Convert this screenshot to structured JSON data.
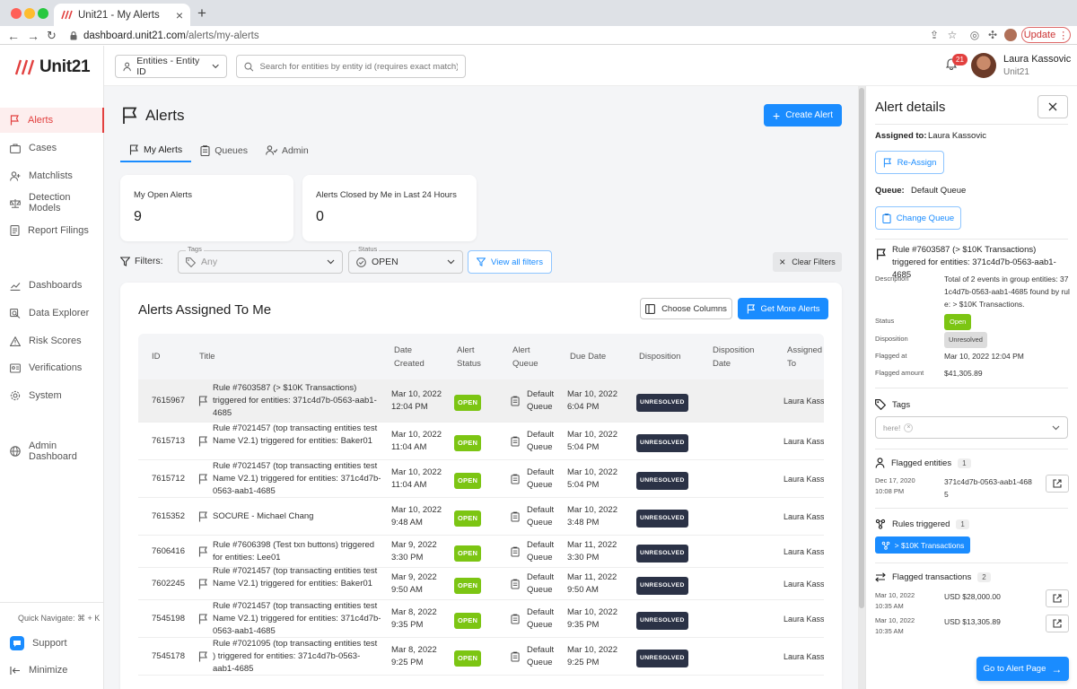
{
  "browser": {
    "tab_title": "Unit21 - My Alerts",
    "url_host": "dashboard.unit21.com",
    "url_path": "/alerts/my-alerts",
    "update_label": "Update"
  },
  "sidebar": {
    "logo_text": "Unit21",
    "items": [
      {
        "label": "Alerts",
        "icon": "flag-icon"
      },
      {
        "label": "Cases",
        "icon": "briefcase-icon"
      },
      {
        "label": "Matchlists",
        "icon": "user-plus-icon"
      },
      {
        "label": "Detection Models",
        "icon": "scale-icon"
      },
      {
        "label": "Report Filings",
        "icon": "document-icon"
      },
      {
        "label": "Dashboards",
        "icon": "chart-icon"
      },
      {
        "label": "Data Explorer",
        "icon": "search-icon"
      },
      {
        "label": "Risk Scores",
        "icon": "warning-icon"
      },
      {
        "label": "Verifications",
        "icon": "id-card-icon"
      },
      {
        "label": "System",
        "icon": "gear-icon"
      },
      {
        "label": "Admin Dashboard",
        "icon": "globe-icon"
      }
    ],
    "quick_navigate": "Quick Navigate: ⌘ + K",
    "support": "Support",
    "minimize": "Minimize"
  },
  "topbar": {
    "entity_select": "Entities - Entity ID",
    "search_placeholder": "Search for entities by entity id (requires exact match)",
    "notification_count": "21",
    "user_name": "Laura Kassovic",
    "user_org": "Unit21"
  },
  "page": {
    "title": "Alerts",
    "create_button": "Create Alert",
    "tabs": [
      "My Alerts",
      "Queues",
      "Admin"
    ],
    "cards": [
      {
        "label": "My Open Alerts",
        "value": "9"
      },
      {
        "label": "Alerts Closed by Me in Last 24 Hours",
        "value": "0"
      }
    ],
    "filters": {
      "label": "Filters:",
      "tags_label": "Tags",
      "tags_placeholder": "Any",
      "status_label": "Status",
      "status_value": "OPEN",
      "view_all": "View all filters",
      "clear": "Clear Filters"
    }
  },
  "table": {
    "title": "Alerts Assigned To Me",
    "choose_columns": "Choose Columns",
    "get_more": "Get More Alerts",
    "columns": [
      "ID",
      "Title",
      "Date Created",
      "Alert Status",
      "Alert Queue",
      "Due Date",
      "Disposition",
      "Disposition Date",
      "Assigned To"
    ],
    "rows": [
      {
        "id": "7615967",
        "title": "Rule #7603587 (> $10K Transactions) triggered for entities: 371c4d7b-0563-aab1-4685",
        "date": "Mar 10, 2022",
        "time": "12:04 PM",
        "status": "OPEN",
        "queue": "Default Queue",
        "due_date": "Mar 10, 2022",
        "due_time": "6:04 PM",
        "disposition": "UNRESOLVED",
        "assigned": "Laura Kassovic"
      },
      {
        "id": "7615713",
        "title": "Rule #7021457 (top transacting entities test Name V2.1) triggered for entities: Baker01",
        "date": "Mar 10, 2022",
        "time": "11:04 AM",
        "status": "OPEN",
        "queue": "Default Queue",
        "due_date": "Mar 10, 2022",
        "due_time": "5:04 PM",
        "disposition": "UNRESOLVED",
        "assigned": "Laura Kassovic"
      },
      {
        "id": "7615712",
        "title": "Rule #7021457 (top transacting entities test Name V2.1) triggered for entities: 371c4d7b-0563-aab1-4685",
        "date": "Mar 10, 2022",
        "time": "11:04 AM",
        "status": "OPEN",
        "queue": "Default Queue",
        "due_date": "Mar 10, 2022",
        "due_time": "5:04 PM",
        "disposition": "UNRESOLVED",
        "assigned": "Laura Kassovic"
      },
      {
        "id": "7615352",
        "title": "SOCURE - Michael Chang",
        "date": "Mar 10, 2022",
        "time": "9:48 AM",
        "status": "OPEN",
        "queue": "Default Queue",
        "due_date": "Mar 10, 2022",
        "due_time": "3:48 PM",
        "disposition": "UNRESOLVED",
        "assigned": "Laura Kassovic"
      },
      {
        "id": "7606416",
        "title": "Rule #7606398 (Test txn buttons) triggered for entities: Lee01",
        "date": "Mar 9, 2022",
        "time": "3:30 PM",
        "status": "OPEN",
        "queue": "Default Queue",
        "due_date": "Mar 11, 2022",
        "due_time": "3:30 PM",
        "disposition": "UNRESOLVED",
        "assigned": "Laura Kassovic"
      },
      {
        "id": "7602245",
        "title": "Rule #7021457 (top transacting entities test Name V2.1) triggered for entities: Baker01",
        "date": "Mar 9, 2022",
        "time": "9:50 AM",
        "status": "OPEN",
        "queue": "Default Queue",
        "due_date": "Mar 11, 2022",
        "due_time": "9:50 AM",
        "disposition": "UNRESOLVED",
        "assigned": "Laura Kassovic"
      },
      {
        "id": "7545198",
        "title": "Rule #7021457 (top transacting entities test Name V2.1) triggered for entities: 371c4d7b-0563-aab1-4685",
        "date": "Mar 8, 2022",
        "time": "9:35 PM",
        "status": "OPEN",
        "queue": "Default Queue",
        "due_date": "Mar 10, 2022",
        "due_time": "9:35 PM",
        "disposition": "UNRESOLVED",
        "assigned": "Laura Kassovic"
      },
      {
        "id": "7545178",
        "title": "Rule #7021095 (top transacting entities test ) triggered for entities: 371c4d7b-0563-aab1-4685",
        "date": "Mar 8, 2022",
        "time": "9:25 PM",
        "status": "OPEN",
        "queue": "Default Queue",
        "due_date": "Mar 10, 2022",
        "due_time": "9:25 PM",
        "disposition": "UNRESOLVED",
        "assigned": "Laura Kassovic"
      }
    ]
  },
  "details": {
    "title": "Alert details",
    "assigned_label": "Assigned to:",
    "assigned_value": "Laura Kassovic",
    "reassign": "Re-Assign",
    "queue_label": "Queue:",
    "queue_value": "Default Queue",
    "change_queue": "Change Queue",
    "rule_title": "Rule #7603587 (> $10K Transactions) triggered for entities: 371c4d7b-0563-aab1-4685",
    "description_label": "Description",
    "description": "Total of 2 events in group entities: 371c4d7b-0563-aab1-4685 found by rule: > $10K Transactions.",
    "status_label": "Status",
    "status": "Open",
    "disposition_label": "Disposition",
    "disposition": "Unresolved",
    "flagged_at_label": "Flagged at",
    "flagged_at": "Mar 10, 2022 12:04 PM",
    "flagged_amount_label": "Flagged amount",
    "flagged_amount": "$41,305.89",
    "tags_label": "Tags",
    "tag_chip": "here!",
    "flagged_entities_label": "Flagged entities",
    "flagged_entities_count": "1",
    "entity_date": "Dec 17, 2020",
    "entity_time": "10:08 PM",
    "entity_id": "371c4d7b-0563-aab1-4685",
    "rules_label": "Rules triggered",
    "rules_count": "1",
    "rule_chip": "> $10K Transactions",
    "txn_label": "Flagged transactions",
    "txn_count": "2",
    "transactions": [
      {
        "date": "Mar 10, 2022",
        "time": "10:35 AM",
        "amount": "USD $28,000.00"
      },
      {
        "date": "Mar 10, 2022",
        "time": "10:35 AM",
        "amount": "USD $13,305.89"
      }
    ],
    "goto": "Go to Alert Page"
  },
  "colors": {
    "accent": "#1a8cff",
    "brand_red": "#e2403f",
    "open_green": "#7cc513",
    "unresolved_dark": "#2b3246"
  }
}
